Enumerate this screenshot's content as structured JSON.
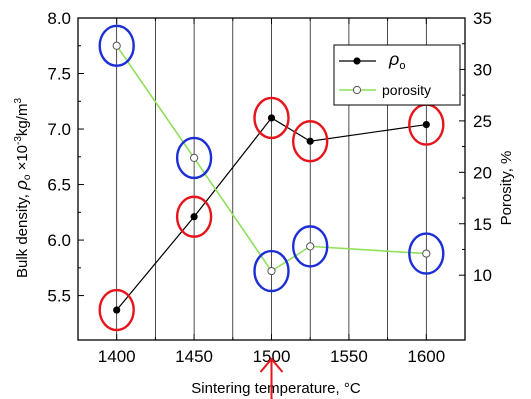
{
  "chart_data": {
    "type": "line",
    "x": [
      1400,
      1450,
      1500,
      1525,
      1600
    ],
    "xlim": [
      1375,
      1625
    ],
    "x_ticks": [
      1400,
      1450,
      1500,
      1550,
      1600
    ],
    "x_tick_labels": [
      "1400",
      "1450",
      "1500",
      "1550",
      "1600"
    ],
    "xlabel": "Sintering temperature, °C",
    "grid": true,
    "legend_position": "top-right",
    "axes": {
      "left": {
        "label": "Bulk density, ρₒ ×10⁻³kg/m³",
        "label_parts": {
          "prefix": "Bulk density, ",
          "rho": "ρ",
          "rho_sub": "o",
          "times": " ×10",
          "exp": "-3",
          "unit_a": "kg/m",
          "unit_exp": "3"
        },
        "ylim": [
          5.1,
          8.0
        ],
        "ticks": [
          5.5,
          6.0,
          6.5,
          7.0,
          7.5,
          8.0
        ],
        "tick_labels": [
          "5.5",
          "6.0",
          "6.5",
          "7.0",
          "7.5",
          "8.0"
        ]
      },
      "right": {
        "label": "Porosity, %",
        "ylim": [
          3.7,
          35
        ],
        "ticks": [
          10,
          15,
          20,
          25,
          30,
          35
        ],
        "tick_labels": [
          "10",
          "15",
          "20",
          "25",
          "30",
          "35"
        ]
      }
    },
    "series": [
      {
        "name": "ρₒ",
        "name_symbol": "ρ",
        "name_sub": "o",
        "axis": "left",
        "color": "#000000",
        "marker": "filled-circle",
        "values": [
          5.37,
          6.21,
          7.1,
          6.89,
          7.04
        ],
        "highlight_color": "#e8141b"
      },
      {
        "name": "porosity",
        "axis": "right",
        "color": "#8fe05a",
        "marker": "open-circle",
        "values": [
          32.3,
          21.4,
          10.4,
          12.8,
          12.1
        ],
        "highlight_color": "#1c2fd6"
      }
    ],
    "annotation": {
      "type": "arrow",
      "at_x": 1500,
      "color": "#e8141b"
    }
  }
}
